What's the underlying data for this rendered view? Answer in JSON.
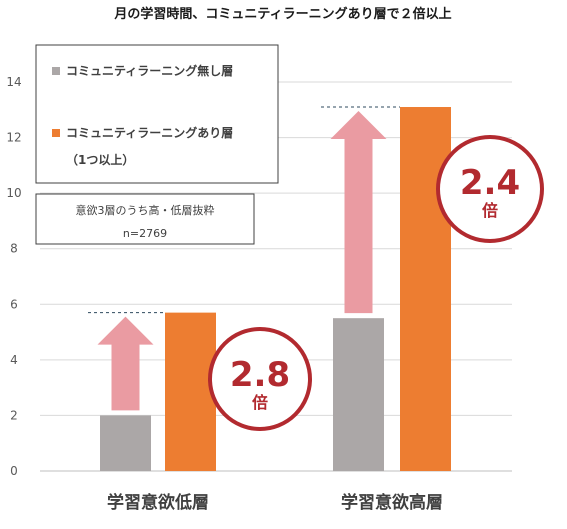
{
  "chart_data": {
    "type": "bar",
    "title": "月の学習時間、コミュニティラーニングあり層で２倍以上",
    "categories": [
      "学習意欲低層",
      "学習意欲高層"
    ],
    "series": [
      {
        "name": "コミュニティラーニング無し層",
        "values": [
          2.0,
          5.5
        ],
        "color": "#aba7a7"
      },
      {
        "name": "コミュニティラーニングあり層",
        "name_line2": "（1つ以上）",
        "values": [
          5.7,
          13.1
        ],
        "color": "#ed7d31"
      }
    ],
    "ylim": [
      0,
      14
    ],
    "yticks": [
      "0",
      "2",
      "4",
      "6",
      "8",
      "10",
      "12",
      "14"
    ],
    "grid": true,
    "legend_position": "top-left",
    "note": {
      "line1": "意欲3層のうち高・低層抜粋",
      "line2": "n=2769"
    },
    "ratios": [
      {
        "value": "2.8",
        "unit": "倍"
      },
      {
        "value": "2.4",
        "unit": "倍"
      }
    ],
    "colors": {
      "arrow": "#ea9ba2",
      "circle_border": "#b22a2f",
      "gridline": "#d9d9d9",
      "dashed_line": "#2e4a5e"
    }
  }
}
